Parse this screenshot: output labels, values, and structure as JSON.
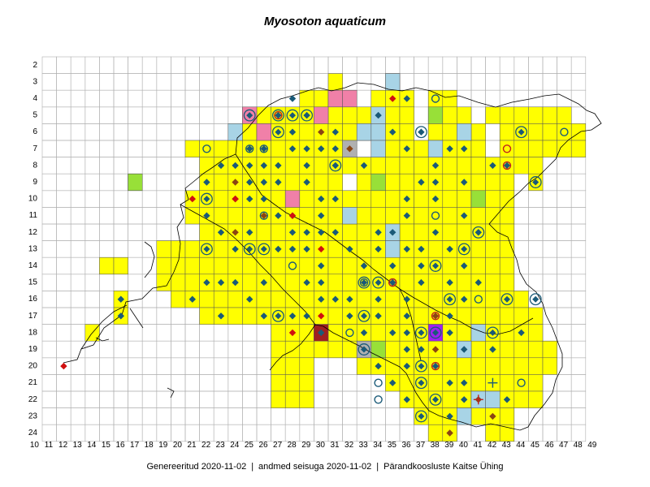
{
  "map": {
    "species": "Myosoton aquaticum",
    "grid": {
      "row_labels": [
        "2",
        "3",
        "4",
        "5",
        "6",
        "7",
        "8",
        "9",
        "10",
        "11",
        "12",
        "13",
        "14",
        "15",
        "16",
        "17",
        "18",
        "19",
        "20",
        "21",
        "22",
        "23",
        "24"
      ],
      "column_labels": [
        "10",
        "11",
        "12",
        "13",
        "14",
        "15",
        "16",
        "17",
        "18",
        "19",
        "20",
        "21",
        "22",
        "23",
        "24",
        "25",
        "26",
        "27",
        "28",
        "29",
        "30",
        "31",
        "32",
        "33",
        "34",
        "35",
        "36",
        "37",
        "38",
        "39",
        "40",
        "41",
        "42",
        "43",
        "44",
        "45",
        "46",
        "47",
        "48",
        "49"
      ]
    },
    "colors": {
      "occupied_cell": "#ffff00",
      "grid_line": "#b0b0b0",
      "border_line": "#000000",
      "diamond": "#1a5a78",
      "diamond_brown": "#8b4513",
      "diamond_red": "#d01010",
      "circle": "#1a5a78",
      "circle_red": "#c02020",
      "light_blue_cell": "#a8d4e6",
      "pink_cell": "#f080a8",
      "green_cell": "#98e038",
      "gray_cell": "#b0b0b0",
      "purple_cell": "#a020f0",
      "dark_red_cell": "#a02020"
    }
  },
  "footer": {
    "generated": "Genereeritud 2020-11-02",
    "data_state": "andmed seisuga 2020-11-02",
    "organization": "Pärandkoosluste Kaitse Ühing"
  }
}
